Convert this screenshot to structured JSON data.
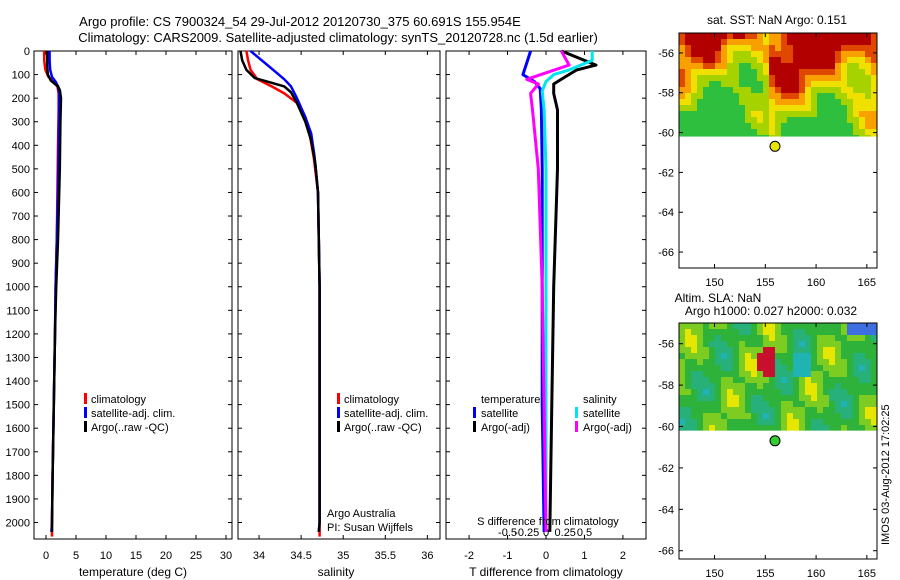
{
  "figure": {
    "title_line1": "Argo profile: CS 7900324_54 29-Jul-2012 20120730_375 60.691S 155.954E",
    "title_line2": "Climatology: CARS2009. Satellite-adjusted climatology: synTS_20120728.nc (1.5d earlier)",
    "credit": "Argo Australia",
    "pi": "PI: Susan Wijffels",
    "stamp": "IMOS 03-Aug-2012 17:02:25"
  },
  "colors": {
    "climatology": "#ff0000",
    "satellite": "#0000ff",
    "argo": "#000000",
    "sal_satellite": "#00e5ee",
    "sal_argo": "#ff00ff"
  },
  "chart_data": [
    {
      "id": "temperature",
      "type": "line",
      "xlabel": "temperature (deg C)",
      "ylabel": "",
      "xlim": [
        -2,
        31
      ],
      "ylim": [
        2070,
        0
      ],
      "xticks": [
        0,
        5,
        10,
        15,
        20,
        25,
        30
      ],
      "yticks": [
        0,
        100,
        200,
        300,
        400,
        500,
        600,
        700,
        800,
        900,
        1000,
        1100,
        1200,
        1300,
        1400,
        1500,
        1600,
        1700,
        1800,
        1900,
        2000
      ],
      "legend": [
        "climatology",
        "satellite-adj. clim.",
        "Argo(..raw -QC)"
      ],
      "series": [
        {
          "name": "climatology",
          "points": [
            [
              -0.3,
              0
            ],
            [
              -0.3,
              40
            ],
            [
              -0.1,
              80
            ],
            [
              0.4,
              110
            ],
            [
              1.2,
              130
            ],
            [
              1.9,
              150
            ],
            [
              2.1,
              180
            ],
            [
              2.1,
              250
            ],
            [
              2.0,
              400
            ],
            [
              1.9,
              600
            ],
            [
              1.8,
              800
            ],
            [
              1.6,
              1000
            ],
            [
              1.5,
              1200
            ],
            [
              1.3,
              1500
            ],
            [
              1.1,
              1800
            ],
            [
              1.0,
              2000
            ],
            [
              1.0,
              2060
            ]
          ]
        },
        {
          "name": "satellite-adj. clim.",
          "points": [
            [
              0.6,
              0
            ],
            [
              0.6,
              40
            ],
            [
              0.7,
              80
            ],
            [
              1.0,
              110
            ],
            [
              1.6,
              130
            ],
            [
              2.0,
              150
            ],
            [
              2.2,
              180
            ],
            [
              2.2,
              250
            ],
            [
              2.1,
              400
            ],
            [
              2.0,
              600
            ],
            [
              1.8,
              800
            ],
            [
              1.6,
              1000
            ],
            [
              1.5,
              1200
            ],
            [
              1.3,
              1500
            ],
            [
              1.1,
              1800
            ],
            [
              1.0,
              2000
            ],
            [
              0.9,
              2040
            ]
          ]
        },
        {
          "name": "Argo(..raw -QC)",
          "points": [
            [
              0.2,
              0
            ],
            [
              0.2,
              60
            ],
            [
              0.3,
              100
            ],
            [
              0.8,
              125
            ],
            [
              1.5,
              140
            ],
            [
              2.0,
              150
            ],
            [
              2.3,
              165
            ],
            [
              2.5,
              200
            ],
            [
              2.4,
              300
            ],
            [
              2.3,
              500
            ],
            [
              2.0,
              800
            ],
            [
              1.7,
              1000
            ],
            [
              1.5,
              1200
            ],
            [
              1.3,
              1500
            ],
            [
              1.1,
              1800
            ],
            [
              1.0,
              2000
            ],
            [
              1.0,
              2040
            ]
          ]
        }
      ]
    },
    {
      "id": "salinity",
      "type": "line",
      "xlabel": "salinity",
      "ylabel": "",
      "xlim": [
        33.75,
        36.15
      ],
      "ylim": [
        2070,
        0
      ],
      "xticks": [
        34,
        34.5,
        35,
        35.5,
        36
      ],
      "legend": [
        "climatology",
        "satellite-adj. clim.",
        "Argo(..raw -QC)"
      ],
      "series": [
        {
          "name": "climatology",
          "points": [
            [
              33.85,
              0
            ],
            [
              33.87,
              40
            ],
            [
              33.9,
              80
            ],
            [
              33.98,
              120
            ],
            [
              34.15,
              150
            ],
            [
              34.3,
              180
            ],
            [
              34.45,
              220
            ],
            [
              34.55,
              280
            ],
            [
              34.6,
              350
            ],
            [
              34.65,
              450
            ],
            [
              34.7,
              600
            ],
            [
              34.71,
              800
            ],
            [
              34.72,
              1000
            ],
            [
              34.72,
              1500
            ],
            [
              34.72,
              2000
            ],
            [
              34.72,
              2060
            ]
          ]
        },
        {
          "name": "satellite-adj. clim.",
          "points": [
            [
              33.9,
              0
            ],
            [
              34.0,
              30
            ],
            [
              34.1,
              60
            ],
            [
              34.2,
              90
            ],
            [
              34.3,
              120
            ],
            [
              34.38,
              150
            ],
            [
              34.45,
              200
            ],
            [
              34.55,
              280
            ],
            [
              34.62,
              350
            ],
            [
              34.66,
              450
            ],
            [
              34.7,
              600
            ],
            [
              34.71,
              800
            ],
            [
              34.72,
              1000
            ],
            [
              34.72,
              1500
            ],
            [
              34.72,
              2000
            ],
            [
              34.71,
              2040
            ]
          ]
        },
        {
          "name": "Argo(..raw -QC)",
          "points": [
            [
              33.78,
              0
            ],
            [
              33.8,
              40
            ],
            [
              33.85,
              80
            ],
            [
              33.95,
              115
            ],
            [
              34.15,
              135
            ],
            [
              34.3,
              150
            ],
            [
              34.38,
              175
            ],
            [
              34.45,
              220
            ],
            [
              34.55,
              300
            ],
            [
              34.62,
              380
            ],
            [
              34.67,
              480
            ],
            [
              34.7,
              600
            ],
            [
              34.71,
              800
            ],
            [
              34.72,
              1000
            ],
            [
              34.72,
              1500
            ],
            [
              34.72,
              2000
            ],
            [
              34.71,
              2040
            ]
          ]
        }
      ]
    },
    {
      "id": "difference",
      "type": "line",
      "xlabel": "T difference from climatology",
      "xlabel_top": "S difference from climatology",
      "xlim": [
        -2.6,
        2.6
      ],
      "ylim": [
        2070,
        0
      ],
      "xticks": [
        -2,
        -1,
        0,
        1,
        2
      ],
      "xticks_salinity": [
        -0.5,
        -0.25,
        0,
        0.25,
        0.5
      ],
      "legend_temperature": {
        "title": "temperature",
        "entries": [
          "satellite",
          "Argo(-adj)"
        ]
      },
      "legend_salinity": {
        "title": "salinity",
        "entries": [
          "satellite",
          "Argo(-adj)"
        ]
      },
      "series": [
        {
          "name": "T satellite",
          "points": [
            [
              -0.4,
              0
            ],
            [
              -0.5,
              50
            ],
            [
              -0.6,
              100
            ],
            [
              -0.3,
              130
            ],
            [
              -0.15,
              160
            ],
            [
              -0.12,
              250
            ],
            [
              -0.1,
              500
            ],
            [
              -0.1,
              1000
            ],
            [
              -0.1,
              1500
            ],
            [
              -0.05,
              2040
            ]
          ]
        },
        {
          "name": "T Argo(-adj)",
          "points": [
            [
              0.4,
              0
            ],
            [
              1.0,
              40
            ],
            [
              1.3,
              60
            ],
            [
              0.8,
              80
            ],
            [
              0.5,
              110
            ],
            [
              0.2,
              140
            ],
            [
              0.2,
              180
            ],
            [
              0.3,
              250
            ],
            [
              0.3,
              500
            ],
            [
              0.2,
              1000
            ],
            [
              0.15,
              1500
            ],
            [
              0.1,
              2040
            ]
          ]
        },
        {
          "name": "S satellite",
          "points": [
            [
              1.2,
              0
            ],
            [
              1.2,
              40
            ],
            [
              0.6,
              80
            ],
            [
              0.2,
              100
            ],
            [
              0.0,
              130
            ],
            [
              -0.1,
              170
            ],
            [
              -0.05,
              250
            ],
            [
              0.0,
              500
            ],
            [
              0.0,
              1000
            ],
            [
              0.0,
              1500
            ],
            [
              0.0,
              2040
            ]
          ]
        },
        {
          "name": "S Argo(-adj)",
          "points": [
            [
              0.4,
              0
            ],
            [
              0.6,
              60
            ],
            [
              -0.5,
              120
            ],
            [
              -0.2,
              140
            ],
            [
              -0.4,
              180
            ],
            [
              -0.35,
              250
            ],
            [
              -0.2,
              500
            ],
            [
              -0.1,
              1000
            ],
            [
              -0.05,
              1500
            ],
            [
              0.0,
              2040
            ]
          ]
        }
      ]
    },
    {
      "id": "sst_map",
      "type": "heatmap",
      "title": "sat. SST: NaN Argo: 0.151",
      "xlim": [
        146.5,
        166
      ],
      "ylim": [
        -66.8,
        -55
      ],
      "xticks": [
        150,
        155,
        160,
        165
      ],
      "yticks": [
        -56,
        -58,
        -60,
        -62,
        -64,
        -66
      ],
      "marker": {
        "lon": 155.954,
        "lat": -60.691
      },
      "data_extent_lat": [
        -60.2,
        -55
      ]
    },
    {
      "id": "sla_map",
      "type": "heatmap",
      "title": "Altim. SLA: NaN",
      "subtitle": "Argo h1000: 0.027 h2000: 0.032",
      "xlim": [
        146.5,
        166
      ],
      "ylim": [
        -66.4,
        -55
      ],
      "xticks": [
        150,
        155,
        160,
        165
      ],
      "yticks": [
        -56,
        -58,
        -60,
        -62,
        -64,
        -66
      ],
      "marker": {
        "lon": 155.954,
        "lat": -60.691
      },
      "data_extent_lat": [
        -60.2,
        -55
      ]
    }
  ]
}
